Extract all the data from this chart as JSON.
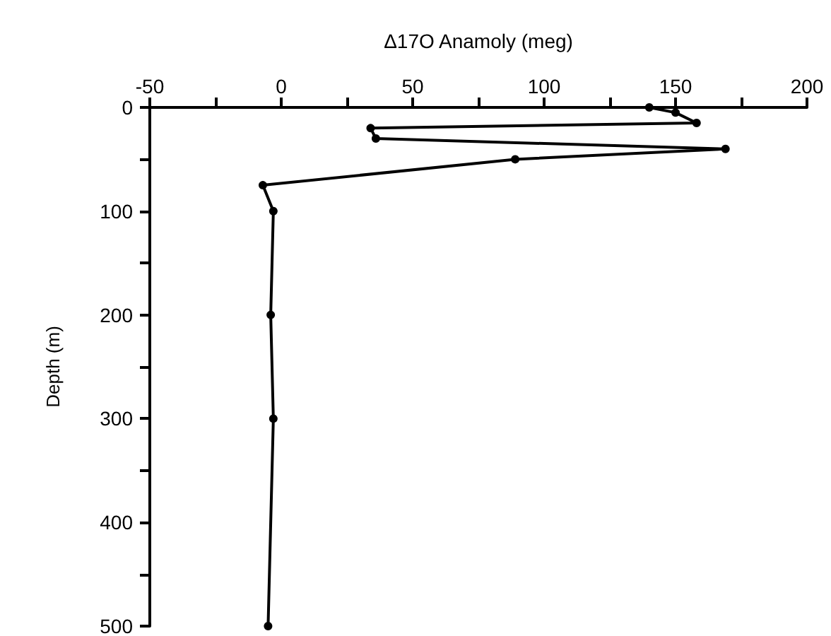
{
  "chart_data": {
    "type": "line",
    "xlabel": "Δ17O Anamoly (meg)",
    "ylabel": "Depth (m)",
    "x": [
      140,
      150,
      158,
      34,
      36,
      169,
      89,
      -7,
      -3,
      -4,
      -3,
      -5
    ],
    "series": [
      {
        "color": "#000000",
        "values": [
          0,
          5,
          15,
          20,
          30,
          40,
          50,
          75,
          100,
          200,
          300,
          500
        ]
      }
    ],
    "xlim": [
      -50,
      200
    ],
    "xticks": [
      -50,
      {
        "value": -25,
        "label": null
      },
      0,
      {
        "value": 25,
        "label": null
      },
      50,
      {
        "value": 75,
        "label": null
      },
      100,
      {
        "value": 125,
        "label": null
      },
      150,
      {
        "value": 175,
        "label": null
      },
      200
    ],
    "ylim": [
      500,
      0
    ],
    "yticks": [
      0,
      {
        "value": 50,
        "label": null
      },
      100,
      {
        "value": 150,
        "label": null
      },
      200,
      {
        "value": 250,
        "label": null
      },
      300,
      {
        "value": 350,
        "label": null
      },
      400,
      {
        "value": 450,
        "label": null
      },
      500
    ],
    "grid": false,
    "marker": "circle",
    "line_style": "solid"
  }
}
